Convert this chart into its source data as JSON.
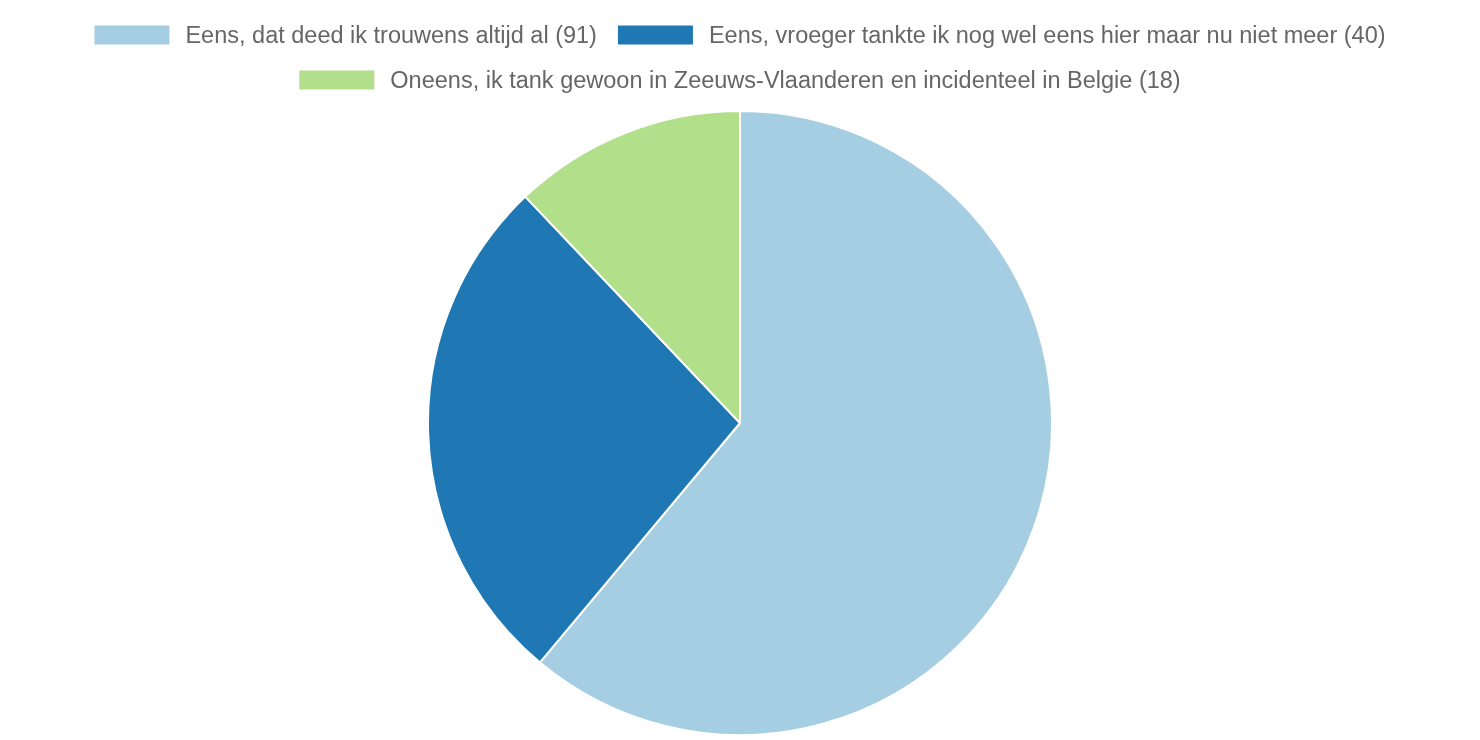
{
  "chart_data": {
    "type": "pie",
    "categories": [
      "Eens, dat deed ik trouwens altijd al (91)",
      "Eens, vroeger tankte ik nog wel eens hier maar nu niet meer (40)",
      "Oneens, ik tank gewoon in Zeeuws-Vlaanderen en incidenteel in Belgie (18)"
    ],
    "values": [
      91,
      40,
      18
    ],
    "colors": [
      "#a6cee3",
      "#1f78b4",
      "#b2df8a"
    ],
    "legend": "top"
  }
}
